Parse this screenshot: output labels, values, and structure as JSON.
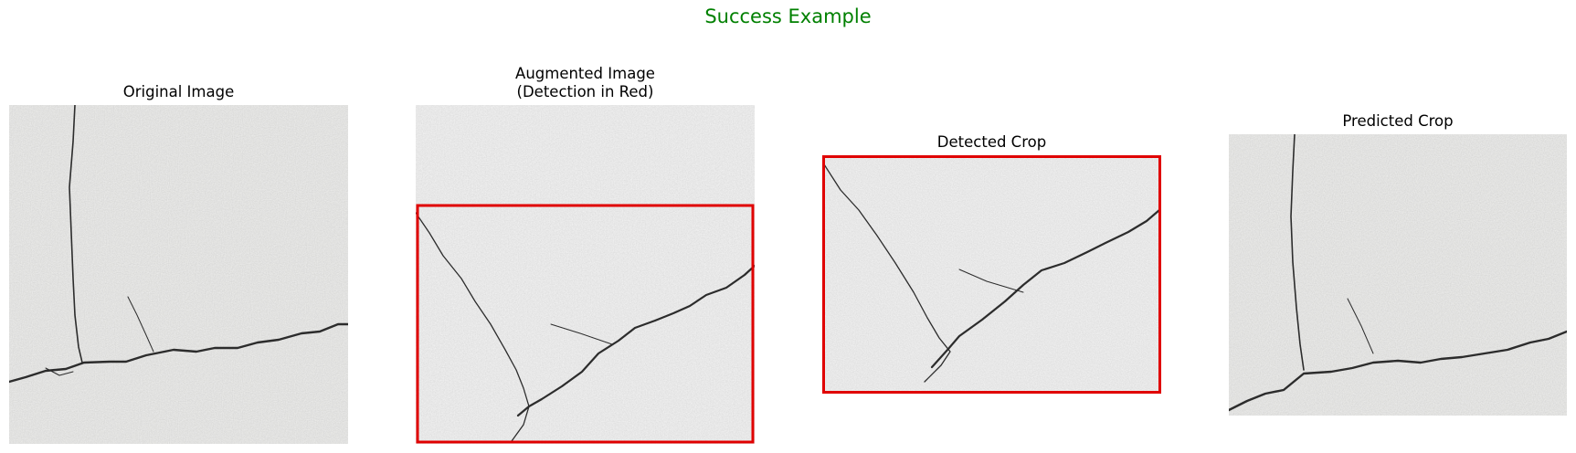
{
  "figure": {
    "title": "Success Example",
    "title_color": "#008000"
  },
  "panels": [
    {
      "title": "Original Image"
    },
    {
      "title": "Augmented Image\n(Detection in Red)",
      "box_color": "#e00000"
    },
    {
      "title": "Detected Crop",
      "box_color": "#e00000"
    },
    {
      "title": "Predicted Crop"
    }
  ],
  "colors": {
    "concrete_light": "#d6d6d4",
    "concrete_mid": "#c6c6c4",
    "crack": "#2c2c2c"
  }
}
